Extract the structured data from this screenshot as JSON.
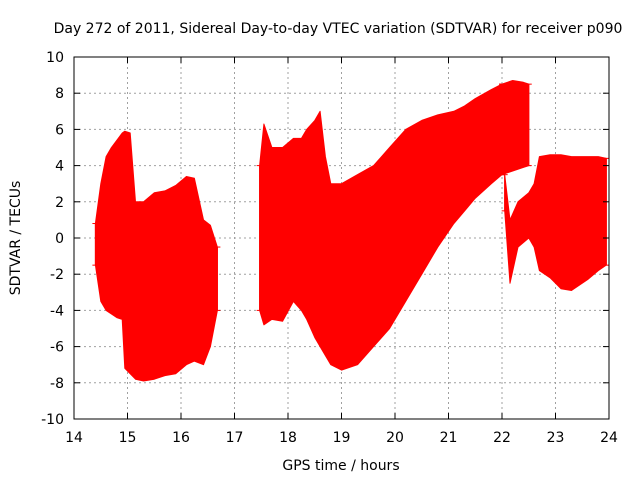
{
  "chart_data": {
    "type": "area",
    "title": "Day 272 of 2011, Sidereal Day-to-day VTEC variation (SDTVAR) for receiver p090",
    "xlabel": "GPS time / hours",
    "ylabel": "SDTVAR / TECUs",
    "xlim": [
      14,
      24
    ],
    "ylim": [
      -10,
      10
    ],
    "x_ticks": [
      14,
      15,
      16,
      17,
      18,
      19,
      20,
      21,
      22,
      23,
      24
    ],
    "y_ticks": [
      -10,
      -8,
      -6,
      -4,
      -2,
      0,
      2,
      4,
      6,
      8,
      10
    ],
    "grid": true,
    "legend": "none",
    "series_color": "#ff0000",
    "segments": [
      {
        "x": [
          14.4,
          14.5,
          14.6,
          14.7,
          14.8,
          14.9,
          14.95,
          15.05,
          15.15,
          15.3,
          15.5,
          15.7,
          15.9,
          16.1,
          16.25,
          16.42,
          16.55,
          16.68
        ],
        "upper": [
          0.8,
          3.0,
          4.5,
          5.0,
          5.4,
          5.8,
          5.9,
          5.8,
          2.0,
          2.0,
          2.5,
          2.6,
          2.9,
          3.4,
          3.3,
          1.0,
          0.7,
          -0.5
        ],
        "lower": [
          -1.5,
          -3.5,
          -4.0,
          -4.2,
          -4.4,
          -4.5,
          -7.2,
          -7.5,
          -7.8,
          -7.9,
          -7.8,
          -7.6,
          -7.5,
          -7.0,
          -6.8,
          -7.0,
          -6.0,
          -4.0
        ]
      },
      {
        "x": [
          17.47,
          17.55,
          17.7,
          17.9,
          18.1,
          18.25,
          18.35,
          18.5,
          18.6,
          18.7,
          18.8,
          19.0,
          19.3,
          19.6,
          19.9,
          20.2,
          20.5,
          20.8,
          21.1,
          21.3,
          21.5,
          21.8,
          22.0
        ],
        "upper": [
          4.0,
          6.3,
          5.0,
          5.0,
          5.5,
          5.5,
          6.0,
          6.5,
          7.0,
          4.5,
          3.0,
          3.0,
          3.5,
          4.0,
          5.0,
          6.0,
          6.5,
          6.8,
          7.0,
          7.3,
          7.7,
          8.2,
          8.5
        ],
        "lower": [
          -4.0,
          -4.8,
          -4.5,
          -4.6,
          -3.5,
          -4.0,
          -4.5,
          -5.5,
          -6.0,
          -6.5,
          -7.0,
          -7.3,
          -7.0,
          -6.0,
          -5.0,
          -3.5,
          -2.0,
          -0.5,
          0.8,
          1.5,
          2.2,
          3.0,
          3.5
        ]
      },
      {
        "x": [
          22.0,
          22.2,
          22.4,
          22.5
        ],
        "upper": [
          8.5,
          8.7,
          8.6,
          8.5
        ],
        "lower": [
          3.5,
          3.7,
          3.9,
          4.0
        ]
      },
      {
        "x": [
          22.05,
          22.15,
          22.3,
          22.5,
          22.6,
          22.7,
          22.9,
          23.1,
          23.3,
          23.6,
          23.8,
          23.95
        ],
        "upper": [
          3.5,
          1.0,
          2.0,
          2.5,
          3.0,
          4.5,
          4.6,
          4.6,
          4.5,
          4.5,
          4.5,
          4.4
        ],
        "lower": [
          1.5,
          -2.5,
          -0.5,
          0.0,
          -0.5,
          -1.8,
          -2.2,
          -2.8,
          -2.9,
          -2.3,
          -1.8,
          -1.5
        ]
      }
    ]
  }
}
